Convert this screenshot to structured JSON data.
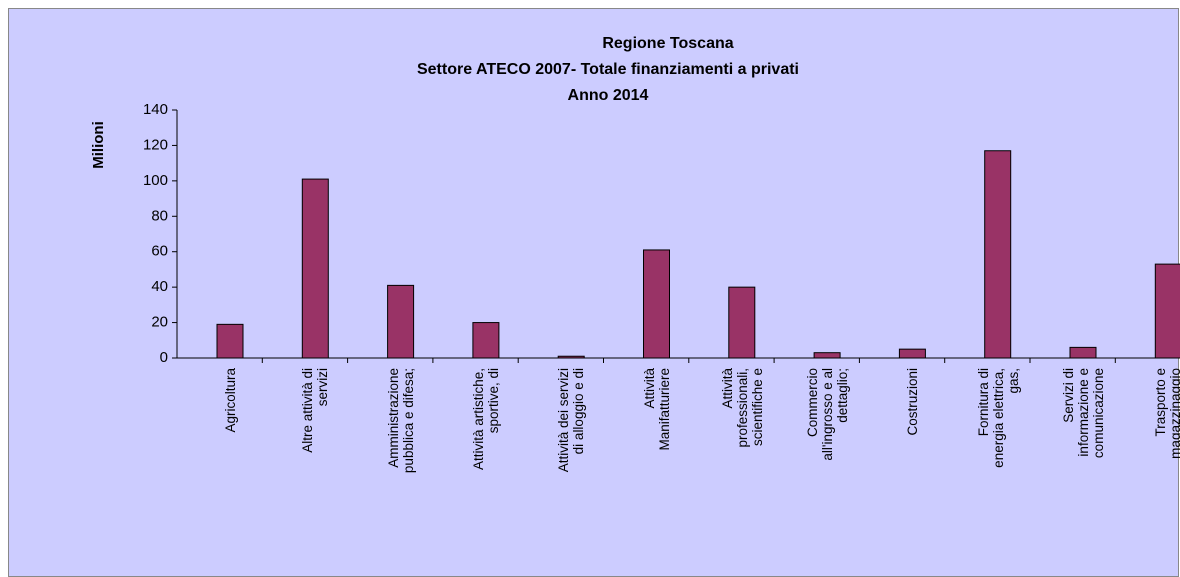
{
  "chart_data": {
    "type": "bar",
    "title": [
      "Regione Toscana",
      "Settore ATECO 2007- Totale finanziamenti a privati",
      "Anno 2014"
    ],
    "y_label": "Milioni",
    "categories": [
      "Agricoltura",
      "Altre attività di servizi",
      "Amministrazione pubblica e difesa;",
      "Attività artistiche, sportive, di",
      "Attività dei servizi di alloggio e di",
      "Attività Manifatturiere",
      "Attività professionali, scientifiche e",
      "Commercio all'ingrosso e al dettaglio;",
      "Costruzioni",
      "Fornitura di energia elettrica, gas,",
      "Servizi di informazione e comunicazione",
      "Trasporto e magazzinaggio"
    ],
    "values": [
      19,
      101,
      41,
      20,
      1,
      61,
      40,
      3,
      5,
      117,
      6,
      53
    ],
    "color": "#993366",
    "ylim": [
      0,
      140
    ],
    "yticks": [
      0,
      20,
      40,
      60,
      80,
      100,
      120,
      140
    ],
    "grid": false
  }
}
